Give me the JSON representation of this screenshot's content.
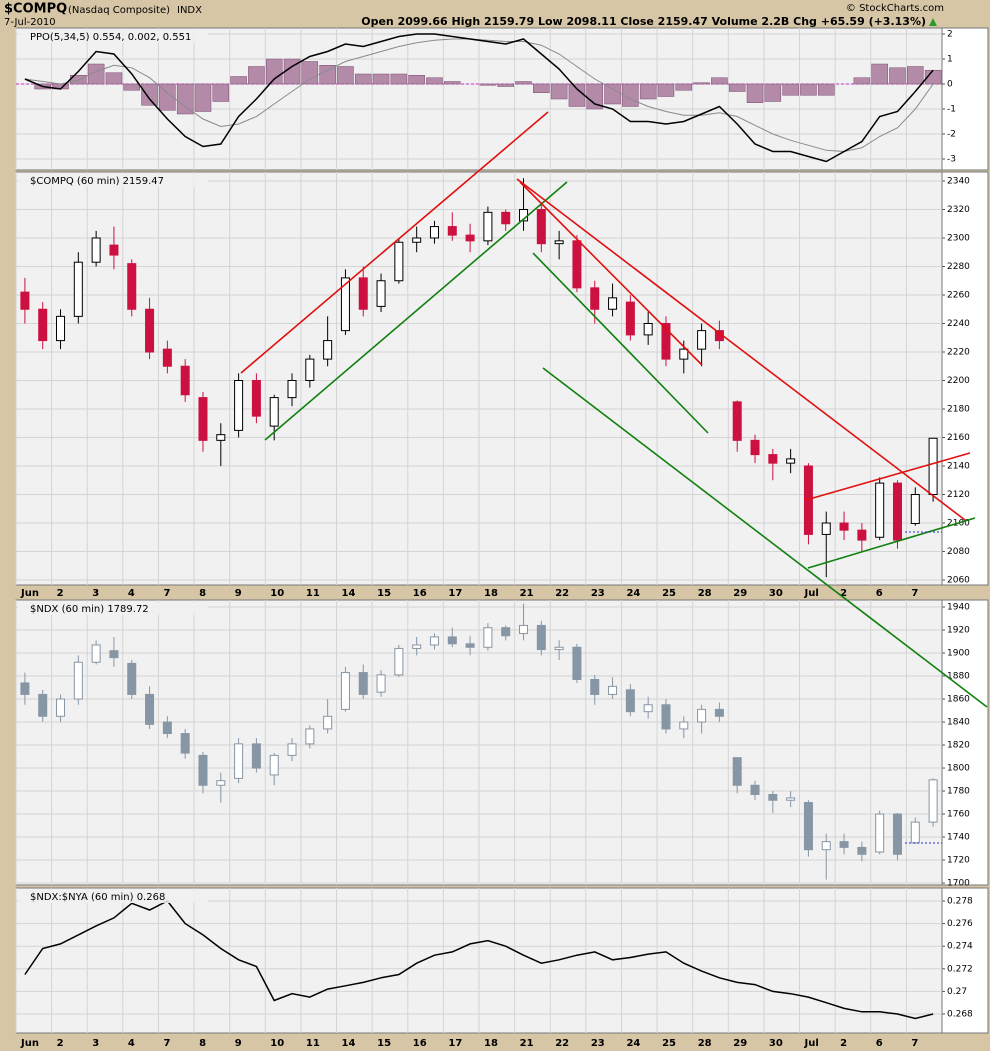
{
  "header": {
    "symbol": "$COMPQ",
    "name": "(Nasdaq Composite)",
    "exchange": "INDX",
    "date": "7-Jul-2010",
    "quote": "Open 2099.66  High 2159.79  Low 2098.11  Close 2159.47  Volume 2.2B  Chg +65.59 (+3.13%)",
    "credit": "© StockCharts.com"
  },
  "chart_data": [
    {
      "type": "line",
      "label": "PPO(5,34,5) 0.554, 0.002, 0.551",
      "ylim": [
        -3.44,
        2.24
      ],
      "yticks": [
        2,
        1,
        0,
        -1,
        -2,
        -3
      ],
      "grid": true,
      "series": [
        {
          "name": "Histogram",
          "kind": "bar",
          "color": "#b48aa9",
          "values": [
            0,
            -0.2,
            -0.2,
            0.35,
            0.8,
            0.45,
            -0.25,
            -0.85,
            -1.05,
            -1.2,
            -1.1,
            -0.7,
            0.3,
            0.7,
            1.0,
            1.0,
            0.9,
            0.75,
            0.7,
            0.4,
            0.4,
            0.4,
            0.35,
            0.25,
            0.1,
            0,
            -0.05,
            -0.1,
            0.1,
            -0.35,
            -0.6,
            -0.9,
            -1.0,
            -0.8,
            -0.9,
            -0.6,
            -0.5,
            -0.25,
            0.05,
            0.25,
            -0.3,
            -0.75,
            -0.7,
            -0.45,
            -0.45,
            -0.45,
            0,
            0.25,
            0.8,
            0.65,
            0.7,
            0.551
          ]
        },
        {
          "name": "Signal",
          "kind": "line",
          "color": "#8a8a8a",
          "values": [
            0.2,
            0.1,
            0,
            0.15,
            0.5,
            0.75,
            0.65,
            0.25,
            -0.35,
            -0.9,
            -1.4,
            -1.7,
            -1.6,
            -1.3,
            -0.8,
            -0.3,
            0.2,
            0.55,
            0.9,
            1.1,
            1.3,
            1.5,
            1.65,
            1.75,
            1.8,
            1.8,
            1.75,
            1.7,
            1.7,
            1.55,
            1.2,
            0.7,
            0.2,
            -0.2,
            -0.6,
            -0.9,
            -1.1,
            -1.25,
            -1.25,
            -1.15,
            -1.3,
            -1.65,
            -2.0,
            -2.25,
            -2.45,
            -2.65,
            -2.7,
            -2.55,
            -2.1,
            -1.75,
            -1.0,
            0.002
          ]
        },
        {
          "name": "PPO",
          "kind": "line",
          "color": "#000000",
          "values": [
            0.2,
            -0.1,
            -0.2,
            0.5,
            1.3,
            1.2,
            0.4,
            -0.6,
            -1.4,
            -2.1,
            -2.5,
            -2.4,
            -1.3,
            -0.6,
            0.2,
            0.7,
            1.1,
            1.3,
            1.6,
            1.5,
            1.7,
            1.9,
            2.0,
            2.0,
            1.9,
            1.8,
            1.7,
            1.6,
            1.8,
            1.2,
            0.6,
            -0.2,
            -0.8,
            -1.0,
            -1.5,
            -1.5,
            -1.6,
            -1.5,
            -1.2,
            -0.9,
            -1.6,
            -2.4,
            -2.7,
            -2.7,
            -2.9,
            -3.1,
            -2.7,
            -2.3,
            -1.3,
            -1.1,
            -0.3,
            0.554
          ]
        }
      ]
    },
    {
      "type": "candlestick",
      "label": "$COMPQ (60 min) 2159.47",
      "up_color": "#000000",
      "down_color": "#cc1040",
      "ylim": [
        2056.5,
        2346.3
      ],
      "yticks": [
        2060,
        2080,
        2100,
        2120,
        2140,
        2160,
        2180,
        2200,
        2220,
        2240,
        2260,
        2280,
        2300,
        2320,
        2340
      ],
      "grid": true,
      "categories": [
        "Jun",
        null,
        "2",
        null,
        "3",
        null,
        "4",
        null,
        "7",
        null,
        "8",
        null,
        "9",
        null,
        "10",
        null,
        "11",
        null,
        "14",
        null,
        "15",
        null,
        "16",
        null,
        "17",
        null,
        "18",
        null,
        "21",
        null,
        "22",
        null,
        "23",
        null,
        "24",
        null,
        "25",
        null,
        "28",
        null,
        "29",
        null,
        "30",
        null,
        "Jul",
        null,
        "2",
        null,
        "6",
        null,
        "7",
        null
      ],
      "open": [
        2262,
        2250,
        2228,
        2245,
        2283,
        2295,
        2282,
        2250,
        2222,
        2210,
        2188,
        2158,
        2165,
        2200,
        2168,
        2188,
        2200,
        2215,
        2235,
        2272,
        2252,
        2270,
        2297,
        2300,
        2308,
        2302,
        2298,
        2318,
        2312,
        2320,
        2296,
        2298,
        2265,
        2250,
        2255,
        2232,
        2240,
        2215,
        2222,
        2235,
        2185,
        2158,
        2148,
        2142,
        2140,
        2092,
        2100,
        2095,
        2090,
        2128,
        2099.66,
        2120
      ],
      "high": [
        2272,
        2255,
        2250,
        2290,
        2305,
        2308,
        2285,
        2258,
        2228,
        2215,
        2192,
        2170,
        2205,
        2205,
        2190,
        2205,
        2218,
        2245,
        2278,
        2280,
        2275,
        2300,
        2308,
        2312,
        2318,
        2310,
        2322,
        2320,
        2342,
        2325,
        2305,
        2302,
        2270,
        2268,
        2260,
        2248,
        2245,
        2228,
        2240,
        2242,
        2186,
        2162,
        2152,
        2152,
        2142,
        2108,
        2108,
        2100,
        2132,
        2130,
        2125,
        2159.79
      ],
      "low": [
        2240,
        2222,
        2222,
        2240,
        2280,
        2278,
        2245,
        2215,
        2205,
        2185,
        2150,
        2140,
        2160,
        2170,
        2158,
        2182,
        2195,
        2210,
        2232,
        2245,
        2248,
        2268,
        2290,
        2296,
        2298,
        2290,
        2295,
        2305,
        2305,
        2290,
        2285,
        2262,
        2240,
        2245,
        2228,
        2225,
        2210,
        2205,
        2210,
        2222,
        2150,
        2142,
        2130,
        2135,
        2085,
        2062,
        2088,
        2080,
        2088,
        2082,
        2098.11,
        2115
      ],
      "close": [
        2250,
        2228,
        2245,
        2283,
        2300,
        2288,
        2250,
        2220,
        2210,
        2190,
        2158,
        2162,
        2200,
        2175,
        2188,
        2200,
        2215,
        2228,
        2272,
        2250,
        2270,
        2297,
        2300,
        2308,
        2302,
        2298,
        2318,
        2310,
        2320,
        2296,
        2298,
        2265,
        2250,
        2258,
        2232,
        2240,
        2215,
        2222,
        2235,
        2228,
        2158,
        2148,
        2142,
        2145,
        2092,
        2100,
        2095,
        2088,
        2128,
        2088,
        2120,
        2159.47
      ]
    },
    {
      "type": "candlestick",
      "label": "$NDX (60 min) 1789.72",
      "up_color": "#8796a5",
      "down_color": "#8796a5",
      "ylim": [
        1698.3,
        1946.1
      ],
      "yticks": [
        1700,
        1720,
        1740,
        1760,
        1780,
        1800,
        1820,
        1840,
        1860,
        1880,
        1900,
        1920,
        1940
      ],
      "grid": true,
      "open": [
        1874,
        1864,
        1845,
        1860,
        1892,
        1902,
        1891,
        1864,
        1840,
        1830,
        1811,
        1785,
        1791,
        1821,
        1794,
        1811,
        1821,
        1834,
        1851,
        1883,
        1866,
        1881,
        1904,
        1907,
        1914,
        1908,
        1905,
        1922,
        1917,
        1924,
        1903,
        1905,
        1877,
        1864,
        1868,
        1849,
        1855,
        1834,
        1840,
        1851,
        1809,
        1785,
        1777,
        1772,
        1770,
        1729,
        1736,
        1731,
        1727,
        1760,
        1735,
        1753
      ],
      "high": [
        1883,
        1868,
        1864,
        1898,
        1911,
        1914,
        1894,
        1871,
        1845,
        1834,
        1814,
        1796,
        1826,
        1826,
        1813,
        1826,
        1837,
        1860,
        1888,
        1890,
        1885,
        1907,
        1914,
        1917,
        1922,
        1915,
        1926,
        1924,
        1943,
        1928,
        1911,
        1908,
        1881,
        1879,
        1873,
        1862,
        1860,
        1845,
        1855,
        1857,
        1809,
        1789,
        1780,
        1780,
        1772,
        1743,
        1743,
        1736,
        1763,
        1761,
        1757,
        1791
      ],
      "low": [
        1855,
        1840,
        1840,
        1855,
        1890,
        1888,
        1860,
        1834,
        1826,
        1808,
        1778,
        1770,
        1787,
        1796,
        1785,
        1806,
        1817,
        1830,
        1849,
        1860,
        1862,
        1879,
        1898,
        1903,
        1905,
        1898,
        1902,
        1911,
        1911,
        1898,
        1894,
        1874,
        1855,
        1860,
        1845,
        1843,
        1830,
        1826,
        1830,
        1840,
        1778,
        1772,
        1761,
        1766,
        1723,
        1703,
        1725,
        1719,
        1725,
        1720,
        1734,
        1749
      ],
      "close": [
        1864,
        1845,
        1860,
        1892,
        1907,
        1896,
        1864,
        1838,
        1830,
        1813,
        1785,
        1789,
        1821,
        1800,
        1811,
        1821,
        1834,
        1845,
        1883,
        1864,
        1881,
        1904,
        1907,
        1914,
        1908,
        1905,
        1922,
        1915,
        1924,
        1903,
        1905,
        1877,
        1864,
        1871,
        1849,
        1855,
        1834,
        1840,
        1851,
        1845,
        1785,
        1777,
        1772,
        1774,
        1729,
        1736,
        1731,
        1725,
        1760,
        1725,
        1753,
        1789.72
      ]
    },
    {
      "type": "line",
      "label": "$NDX:$NYA (60 min) 0.268",
      "ylim": [
        0.26632,
        0.27915
      ],
      "yticks": [
        0.268,
        0.27,
        0.272,
        0.274,
        0.276,
        0.278
      ],
      "grid": true,
      "categories": [
        "Jun",
        null,
        "2",
        null,
        "3",
        null,
        "4",
        null,
        "7",
        null,
        "8",
        null,
        "9",
        null,
        "10",
        null,
        "11",
        null,
        "14",
        null,
        "15",
        null,
        "16",
        null,
        "17",
        null,
        "18",
        null,
        "21",
        null,
        "22",
        null,
        "23",
        null,
        "24",
        null,
        "25",
        null,
        "28",
        null,
        "29",
        null,
        "30",
        null,
        "Jul",
        null,
        "2",
        null,
        "6",
        null,
        "7",
        null
      ],
      "series": [
        {
          "name": "$NDX:$NYA",
          "kind": "line",
          "color": "#000000",
          "values": [
            0.2715,
            0.2738,
            0.2742,
            0.275,
            0.2758,
            0.2765,
            0.2778,
            0.2772,
            0.278,
            0.276,
            0.275,
            0.2738,
            0.2728,
            0.2722,
            0.2692,
            0.2698,
            0.2695,
            0.2702,
            0.2705,
            0.2708,
            0.2712,
            0.2715,
            0.2725,
            0.2732,
            0.2735,
            0.2742,
            0.2745,
            0.274,
            0.2732,
            0.2725,
            0.2728,
            0.2732,
            0.2735,
            0.2728,
            0.273,
            0.2733,
            0.2735,
            0.2725,
            0.2718,
            0.2712,
            0.2708,
            0.2706,
            0.27,
            0.2698,
            0.2695,
            0.269,
            0.2685,
            0.2682,
            0.2682,
            0.268,
            0.2676,
            0.268
          ]
        }
      ]
    }
  ]
}
